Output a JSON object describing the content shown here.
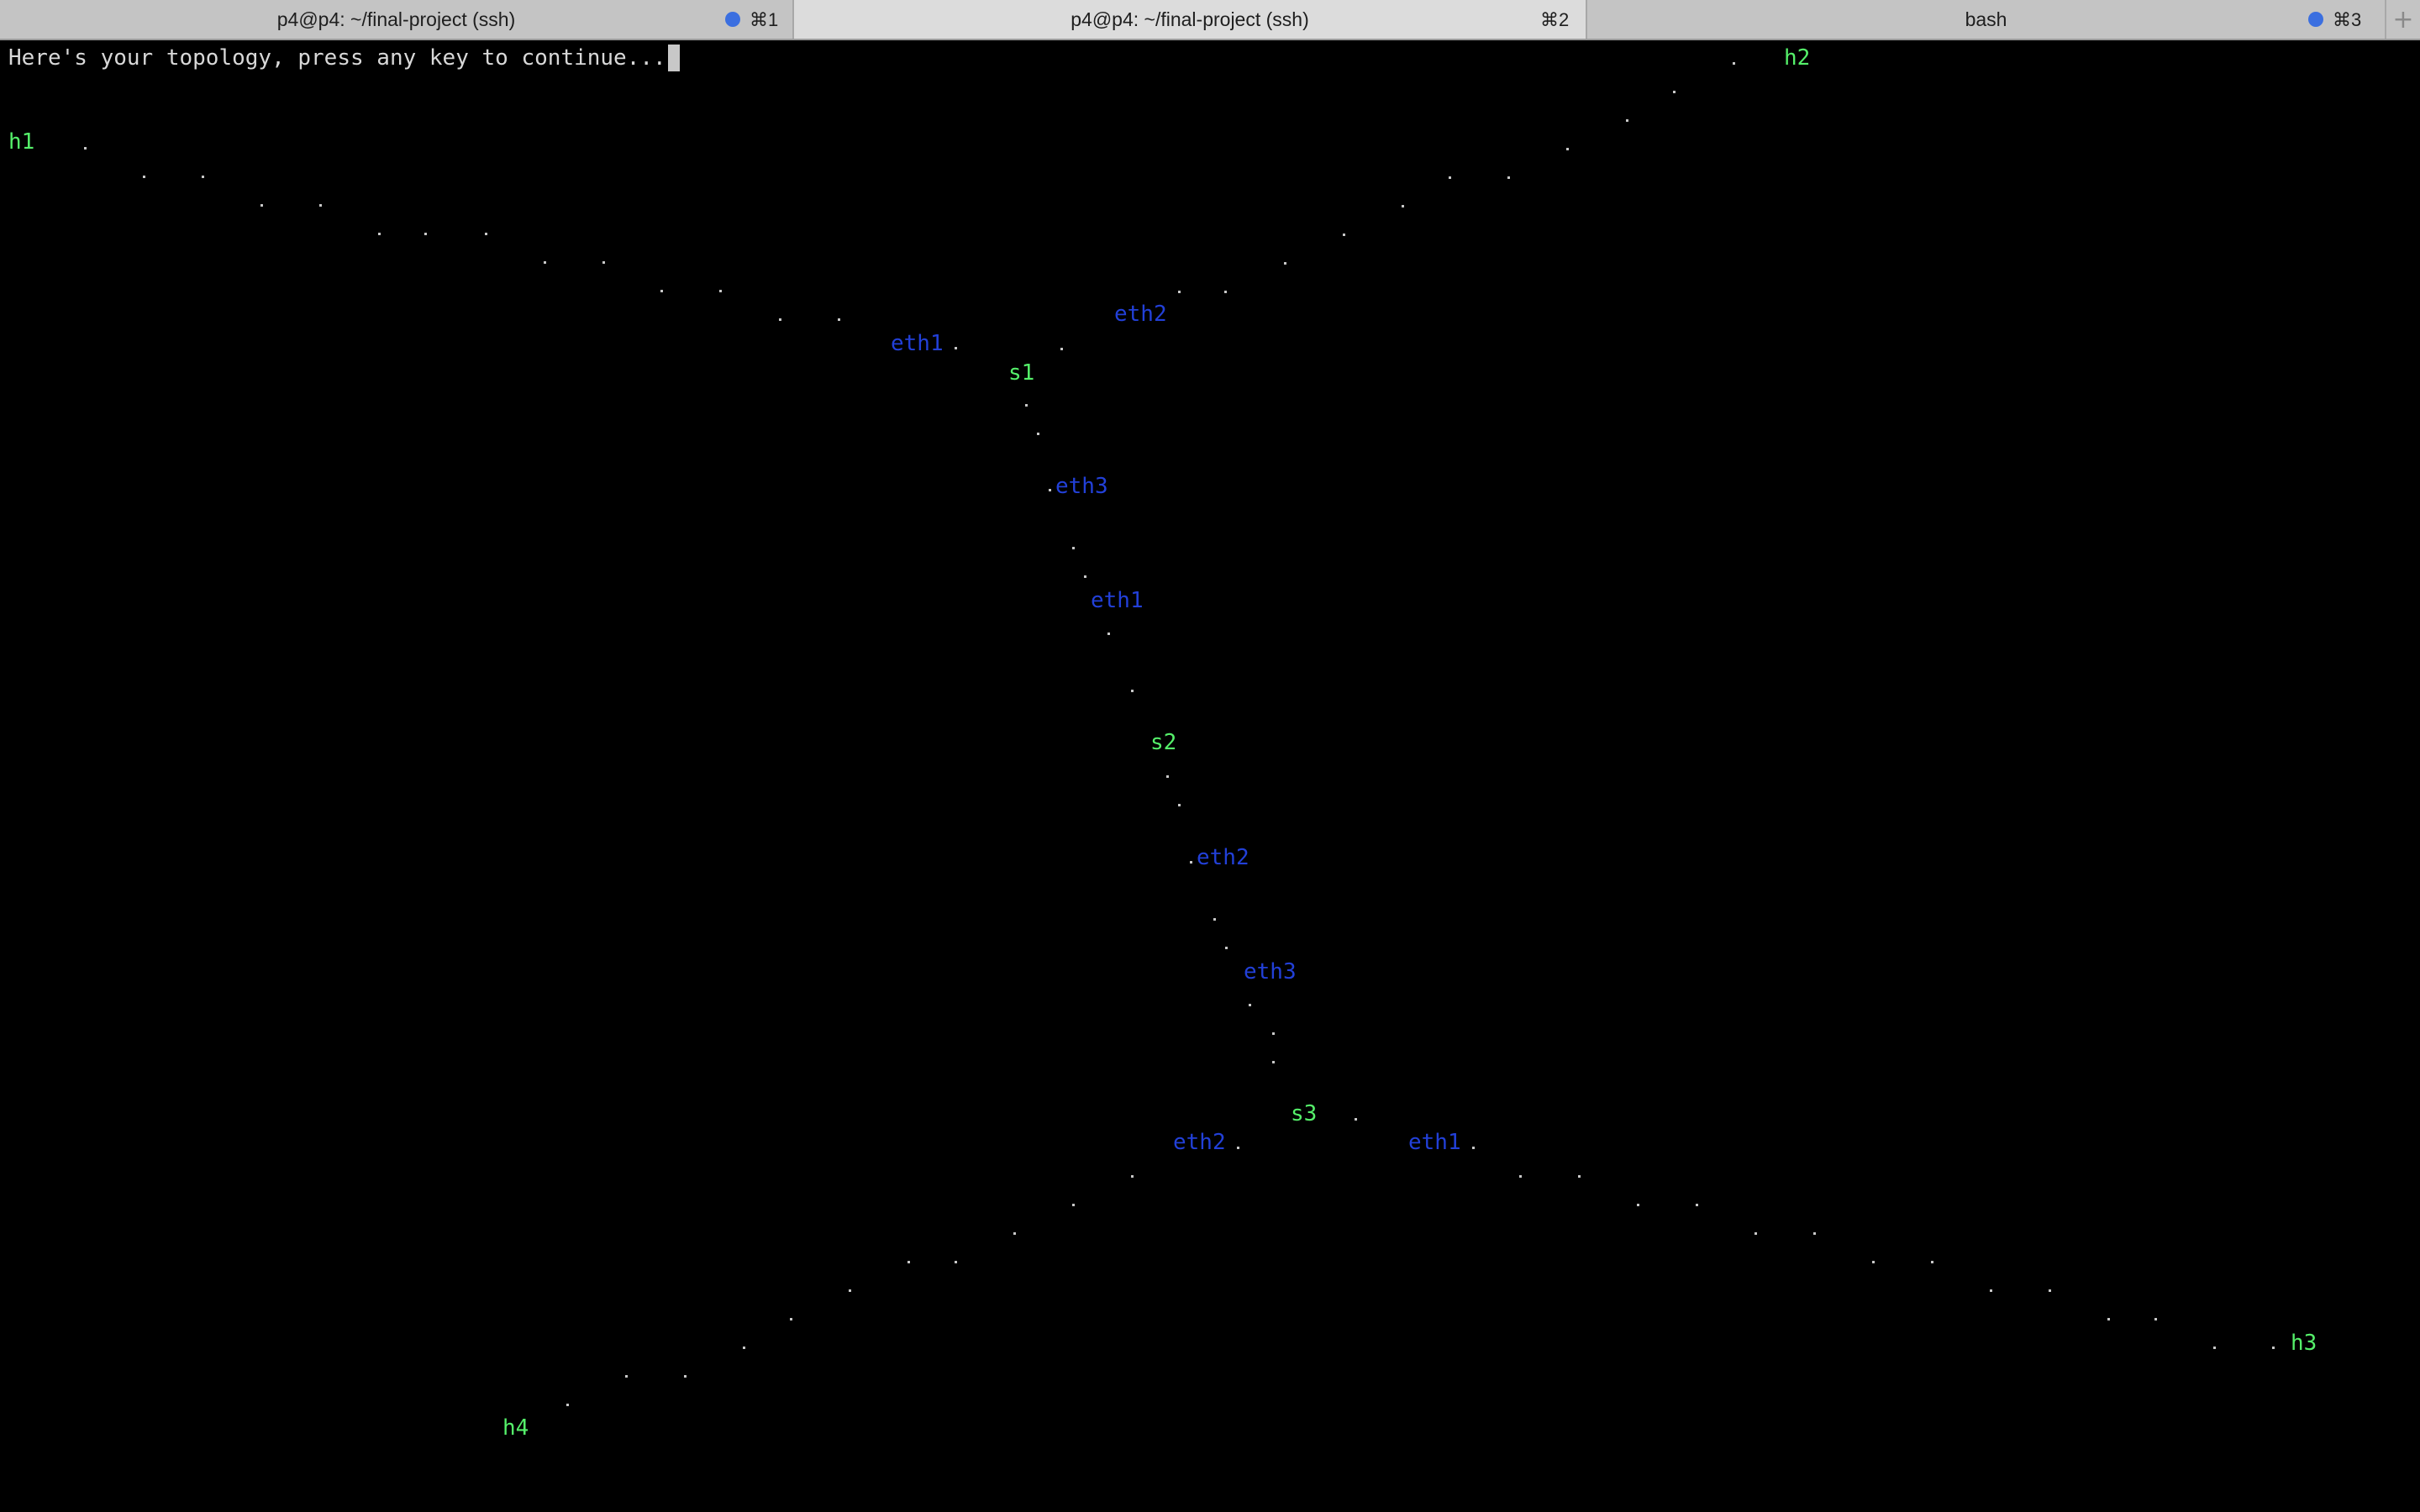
{
  "tabs": [
    {
      "title": "p4@p4: ~/final-project (ssh)",
      "shortcut": "⌘1",
      "has_dot": true,
      "active": false
    },
    {
      "title": "p4@p4: ~/final-project (ssh)",
      "shortcut": "⌘2",
      "has_dot": false,
      "active": true
    },
    {
      "title": "bash",
      "shortcut": "⌘3",
      "has_dot": true,
      "active": false
    }
  ],
  "new_tab_icon": "+",
  "terminal": {
    "prompt_text": "Here's your topology, press any key to continue..."
  },
  "colors": {
    "background": "#000000",
    "text": "#d8d8d8",
    "node": "#55f06a",
    "interface": "#2240d8",
    "link_dot": "#c8c8c8",
    "tab_dot": "#3b6fe0",
    "cursor": "#c8c8c8"
  },
  "topology": {
    "nodes": [
      "h1",
      "h2",
      "s1",
      "s2",
      "s3",
      "h3",
      "h4"
    ],
    "interfaces": [
      "eth1",
      "eth2",
      "eth3",
      "eth1",
      "eth2",
      "eth3",
      "eth2",
      "eth1"
    ]
  }
}
